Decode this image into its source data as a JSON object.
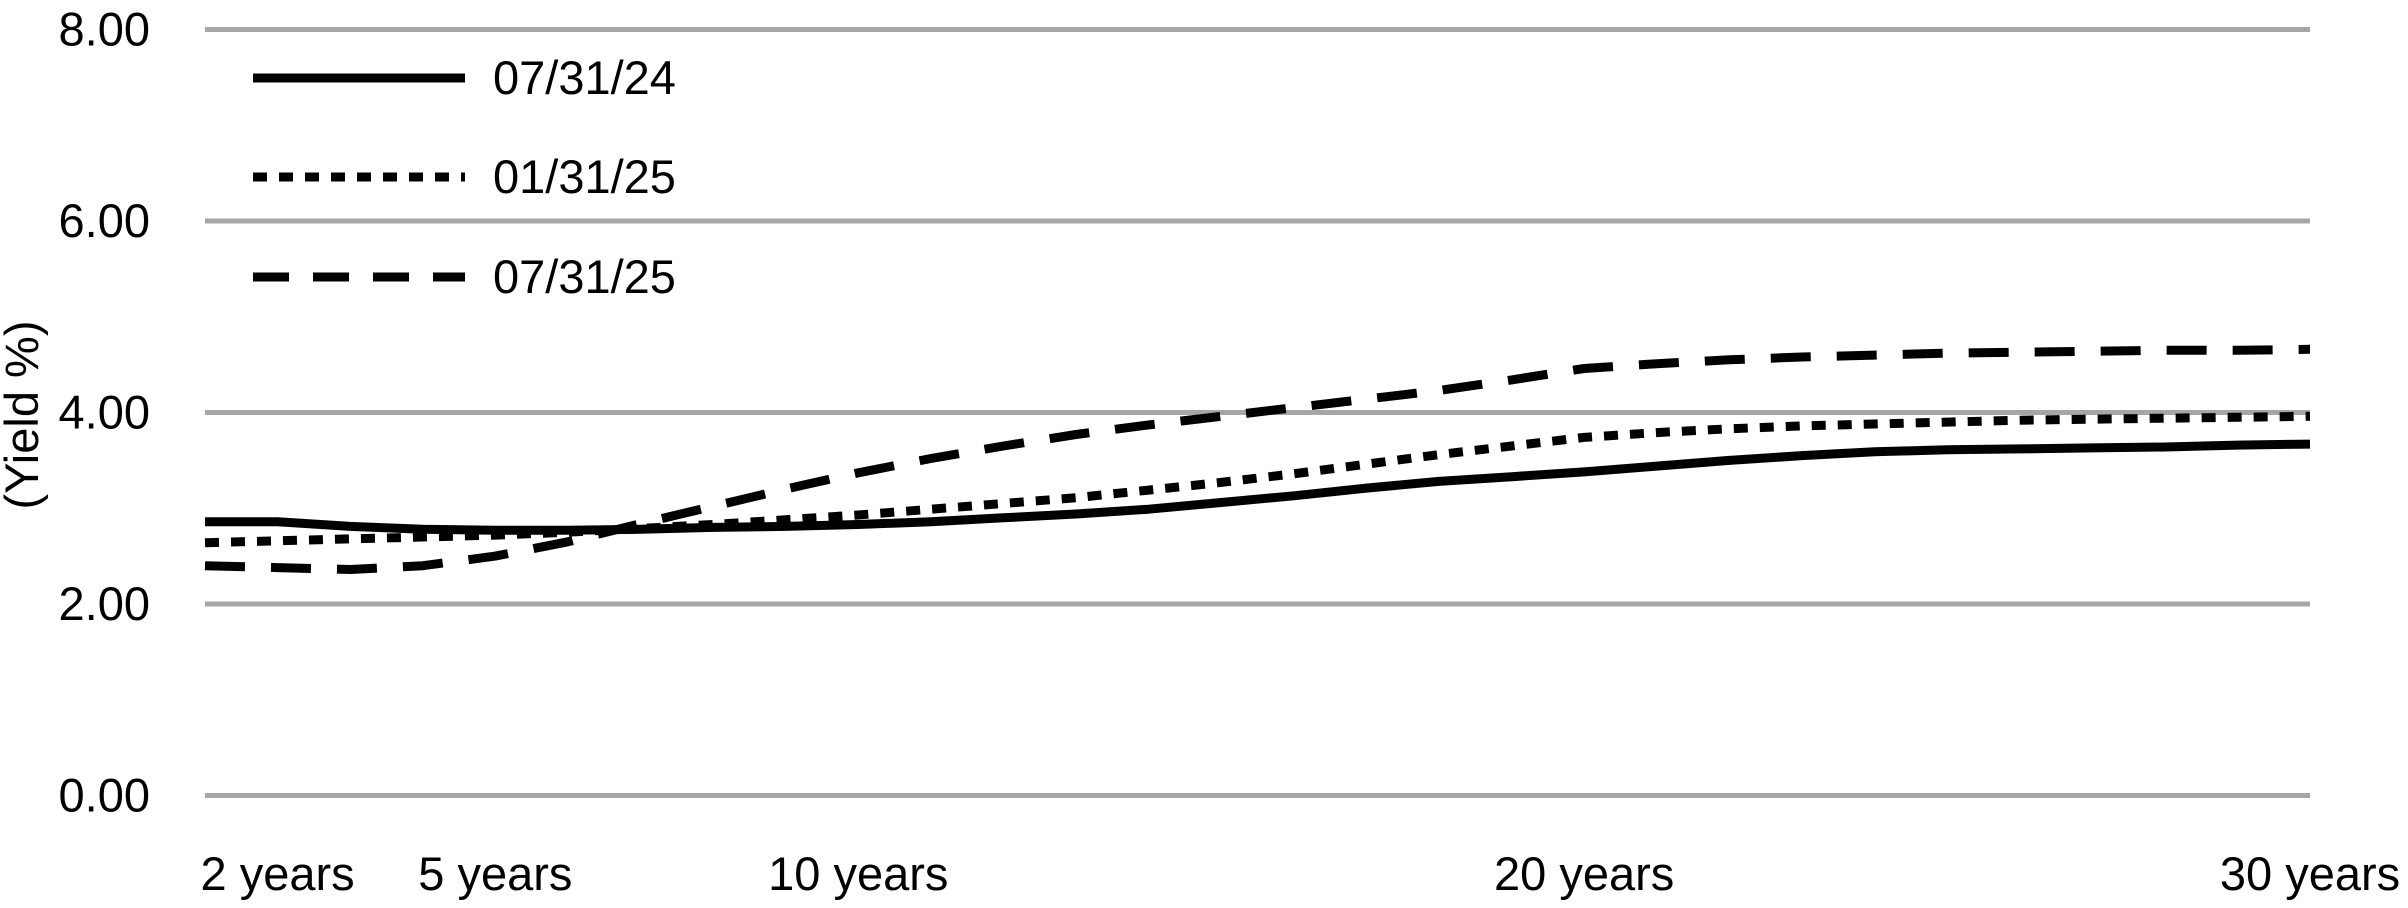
{
  "chart_data": {
    "type": "line",
    "title": "",
    "xlabel": "",
    "ylabel": "(Yield %)",
    "ylim": [
      0,
      8
    ],
    "xlim_years": [
      1,
      30
    ],
    "grid": "horizontal",
    "legend_position": "top-left",
    "colors": {
      "line": "#000000",
      "grid": "#a6a6a6",
      "text": "#000000",
      "background": "#ffffff"
    },
    "y_ticks": [
      {
        "value": 0,
        "label": "0.00"
      },
      {
        "value": 2,
        "label": "2.00"
      },
      {
        "value": 4,
        "label": "4.00"
      },
      {
        "value": 6,
        "label": "6.00"
      },
      {
        "value": 8,
        "label": "8.00"
      }
    ],
    "x_ticks": [
      {
        "value": 2,
        "label": "2 years"
      },
      {
        "value": 5,
        "label": "5 years"
      },
      {
        "value": 10,
        "label": "10 years"
      },
      {
        "value": 20,
        "label": "20 years"
      },
      {
        "value": 30,
        "label": "30 years"
      }
    ],
    "x": [
      1,
      2,
      3,
      4,
      5,
      6,
      7,
      8,
      9,
      10,
      11,
      12,
      13,
      14,
      15,
      16,
      17,
      18,
      19,
      20,
      21,
      22,
      23,
      24,
      25,
      26,
      27,
      28,
      29,
      30
    ],
    "series": [
      {
        "name": "07/31/24",
        "style": "solid",
        "values": [
          2.86,
          2.86,
          2.81,
          2.78,
          2.77,
          2.77,
          2.78,
          2.8,
          2.81,
          2.83,
          2.86,
          2.9,
          2.94,
          2.99,
          3.06,
          3.13,
          3.21,
          3.28,
          3.33,
          3.38,
          3.44,
          3.5,
          3.55,
          3.59,
          3.61,
          3.62,
          3.63,
          3.64,
          3.66,
          3.67
        ]
      },
      {
        "name": "01/31/25",
        "style": "dotted",
        "values": [
          2.64,
          2.66,
          2.68,
          2.7,
          2.72,
          2.75,
          2.79,
          2.83,
          2.88,
          2.93,
          2.99,
          3.05,
          3.11,
          3.19,
          3.27,
          3.36,
          3.46,
          3.56,
          3.65,
          3.74,
          3.79,
          3.83,
          3.86,
          3.88,
          3.9,
          3.92,
          3.93,
          3.94,
          3.95,
          3.96
        ]
      },
      {
        "name": "07/31/25",
        "style": "dashed",
        "values": [
          2.4,
          2.38,
          2.36,
          2.4,
          2.5,
          2.65,
          2.84,
          3.02,
          3.2,
          3.37,
          3.52,
          3.65,
          3.77,
          3.87,
          3.96,
          4.05,
          4.14,
          4.23,
          4.34,
          4.46,
          4.51,
          4.55,
          4.58,
          4.6,
          4.62,
          4.63,
          4.64,
          4.65,
          4.65,
          4.66
        ]
      }
    ]
  }
}
